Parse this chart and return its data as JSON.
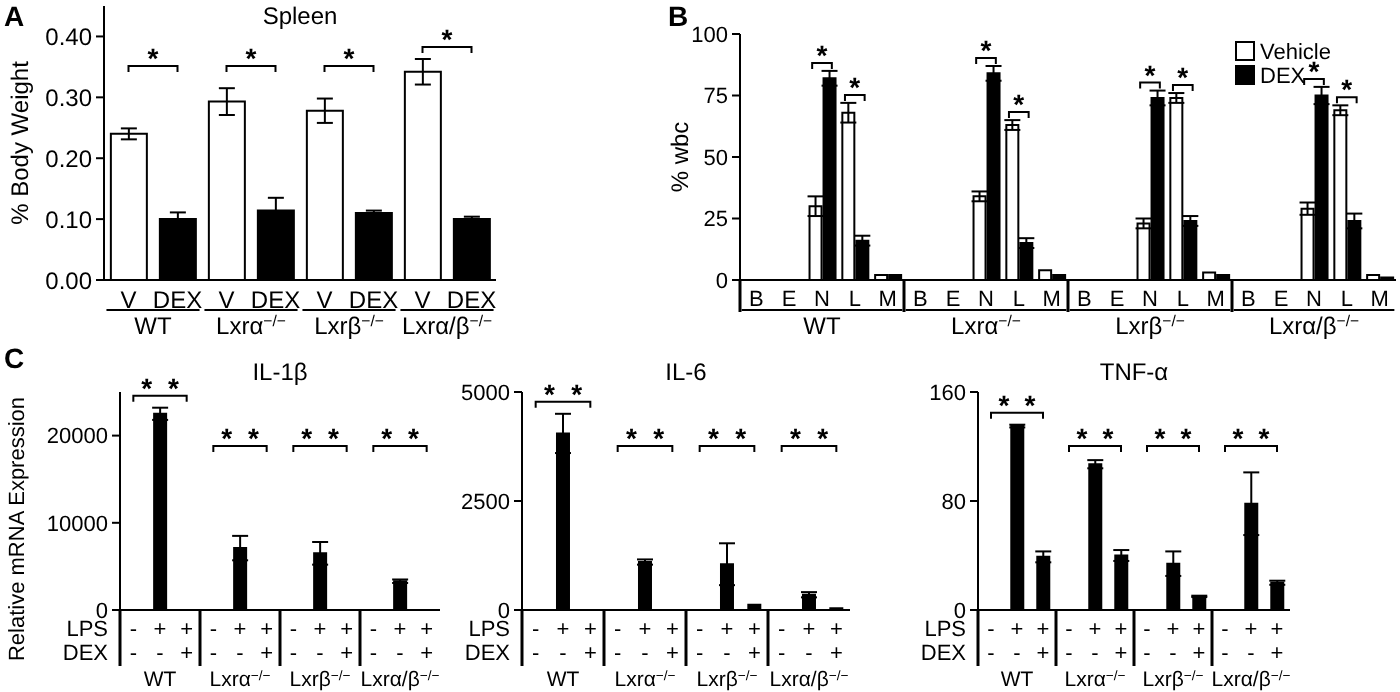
{
  "chart_data": [
    {
      "type": "bar",
      "title": "Spleen",
      "ylabel": "% Body Weight",
      "categories": [
        "V",
        "DEX",
        "V",
        "DEX",
        "V",
        "DEX",
        "V",
        "DEX"
      ],
      "values": [
        0.24,
        0.1,
        0.293,
        0.114,
        0.278,
        0.11,
        0.342,
        0.1
      ],
      "colors": [
        "#ffffff",
        "#000000",
        "#ffffff",
        "#000000",
        "#ffffff",
        "#000000",
        "#ffffff",
        "#000000"
      ],
      "errors": [
        0.009,
        0.011,
        0.022,
        0.021,
        0.02,
        0.004,
        0.021,
        0.004
      ],
      "ylim": [
        0,
        0.45
      ],
      "yticks": [
        {
          "value": 0,
          "label": "0.00"
        },
        {
          "value": 0.1,
          "label": "0.10"
        },
        {
          "value": 0.2,
          "label": "0.20"
        },
        {
          "value": 0.3,
          "label": "0.30"
        },
        {
          "value": 0.4,
          "label": "0.40"
        }
      ],
      "annotations": [
        "WT",
        "Lxrα$^{−/−}$",
        "Lxrβ$^{−/−}$",
        "Lxrα/β$^{−/−}$",
        "*",
        "*",
        "*",
        "*",
        "A"
      ]
    },
    {
      "type": "bar",
      "ylabel": "% wbc",
      "categories": [
        "B",
        "E",
        "N",
        "L",
        "M",
        "B",
        "E",
        "N",
        "L",
        "M",
        "B",
        "E",
        "N",
        "L",
        "M",
        "B",
        "E",
        "N",
        "L",
        "M"
      ],
      "series": [
        {
          "name": "Vehicle",
          "color": "#ffffff",
          "values": [
            0,
            0,
            30,
            68,
            2,
            0,
            0,
            34,
            63,
            4,
            0,
            0,
            23,
            74,
            3,
            0,
            0,
            29,
            69,
            2
          ],
          "errors": [
            null,
            null,
            4,
            4,
            null,
            null,
            null,
            2,
            2,
            null,
            null,
            null,
            2,
            2,
            null,
            null,
            null,
            2.5,
            2,
            null
          ]
        },
        {
          "name": "DEX",
          "color": "#000000",
          "values": [
            0,
            0,
            82,
            16,
            2,
            0,
            0,
            84,
            15,
            2,
            0,
            0,
            74,
            24,
            2,
            0,
            0,
            75,
            24,
            1
          ],
          "errors": [
            null,
            null,
            3,
            2,
            null,
            null,
            null,
            3,
            2,
            null,
            null,
            null,
            3,
            2,
            null,
            null,
            null,
            3.5,
            3,
            null
          ]
        }
      ],
      "ylim": [
        0,
        100
      ],
      "yticks": [
        0,
        25,
        50,
        75,
        100
      ],
      "legend": "top right",
      "annotations": [
        "WT",
        "Lxrα$^{−/−}$",
        "Lxrβ$^{−/−}$",
        "Lxrα/β$^{−/−}$",
        "*",
        "*",
        "*",
        "*",
        "*",
        "*",
        "*",
        "*",
        "B"
      ]
    },
    {
      "type": "bar",
      "title": "IL-1β",
      "ylabel": "Relative mRNA Expression",
      "xlabel": "LPS\nDEX",
      "categories": [
        "-\n-",
        "+\n-",
        "+\n+",
        "-\n-",
        "+\n-",
        "+\n+",
        "-\n-",
        "+\n-",
        "+\n+",
        "-\n-",
        "+\n-",
        "+\n+"
      ],
      "values": [
        0,
        22500,
        0,
        0,
        7100,
        0,
        0,
        6500,
        0,
        0,
        3300,
        0
      ],
      "color": "#000000",
      "errors": [
        null,
        700,
        null,
        null,
        1400,
        null,
        null,
        1300,
        null,
        null,
        200,
        null
      ],
      "ylim": [
        0,
        25000
      ],
      "yticks": [
        0,
        10000,
        20000
      ],
      "annotations": [
        "WT",
        "Lxrα$^{−/−}$",
        "Lxrβ$^{−/−}$",
        "Lxrα/β$^{−/−}$",
        "*",
        "*",
        "*",
        "*",
        "*",
        "*",
        "*",
        "*",
        "C"
      ]
    },
    {
      "type": "bar",
      "title": "IL-6",
      "xlabel": "LPS\nDEX",
      "categories": [
        "-\n-",
        "+\n-",
        "+\n+",
        "-\n-",
        "+\n-",
        "+\n+",
        "-\n-",
        "+\n-",
        "+\n+",
        "-\n-",
        "+\n-",
        "+\n+"
      ],
      "values": [
        0,
        4050,
        0,
        0,
        1100,
        0,
        0,
        1050,
        120,
        0,
        350,
        40
      ],
      "color": "#000000",
      "errors": [
        null,
        450,
        null,
        null,
        60,
        null,
        null,
        480,
        null,
        null,
        60,
        null
      ],
      "ylim": [
        0,
        5000
      ],
      "yticks": [
        0,
        2500,
        5000
      ],
      "annotations": [
        "WT",
        "Lxrα$^{−/−}$",
        "Lxrβ$^{−/−}$",
        "Lxrα/β$^{−/−}$",
        "*",
        "*",
        "*",
        "*",
        "*",
        "*",
        "*",
        "*"
      ]
    },
    {
      "type": "bar",
      "title": "TNF-α",
      "xlabel": "LPS\nDEX",
      "categories": [
        "-\n-",
        "+\n-",
        "+\n+",
        "-\n-",
        "+\n-",
        "+\n+",
        "-\n-",
        "+\n-",
        "+\n+",
        "-\n-",
        "+\n-",
        "+\n+"
      ],
      "values": [
        0,
        135,
        39,
        0,
        107,
        40,
        0,
        34,
        10,
        0,
        78,
        20
      ],
      "color": "#000000",
      "errors": [
        null,
        1,
        4,
        null,
        3,
        4,
        null,
        9,
        0.5,
        null,
        23,
        1.5
      ],
      "ylim": [
        0,
        160
      ],
      "yticks": [
        0,
        80,
        160
      ],
      "annotations": [
        "WT",
        "Lxrα$^{−/−}$",
        "Lxrβ$^{−/−}$",
        "Lxrα/β$^{−/−}$",
        "*",
        "*",
        "*",
        "*",
        "*",
        "*",
        "*",
        "*"
      ]
    }
  ]
}
